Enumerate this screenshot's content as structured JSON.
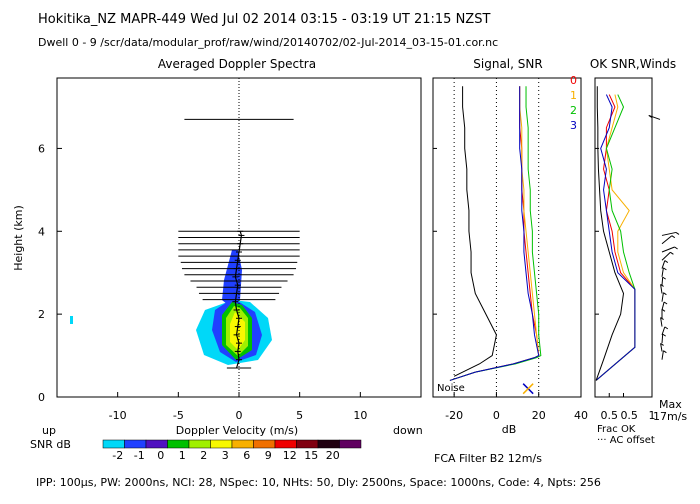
{
  "header": {
    "line1": "Hokitika_NZ  MAPR-449  Wed Jul 02 2014 03:15 - 03:19 UT 21:15 NZST",
    "line2": "Dwell  0 - 9  /scr/data/modular_prof/raw/wind/20140702/02-Jul-2014_03-15-01.cor.nc"
  },
  "footer": {
    "params": "IPP: 100µs,  PW: 2000ns,  NCI: 28,  NSpec: 10,  NHts: 50,  Dly: 2500ns,  Space: 1000ns,  Code: 4,  Npts: 256",
    "fca": "FCA Filter B2 12m/s"
  },
  "colors": {
    "snr_scale": [
      "#00d8f8",
      "#2040ff",
      "#5010c0",
      "#00c000",
      "#a0f000",
      "#f8f800",
      "#f8b000",
      "#f07000",
      "#f00000",
      "#800010",
      "#200010",
      "#600060"
    ],
    "snr_legend_labels": [
      "-2",
      "-1",
      "0",
      "1",
      "2",
      "3",
      "6",
      "9",
      "12",
      "15",
      "20"
    ]
  },
  "chart_data": [
    {
      "type": "heatmap",
      "title": "Averaged Doppler Spectra",
      "xlabel": "Doppler Velocity (m/s)",
      "ylabel": "Height (km)",
      "xlim": [
        -15,
        15
      ],
      "ylim": [
        0,
        7.7
      ],
      "xticks": [
        -10,
        -5,
        0,
        5,
        10
      ],
      "yticks": [
        0,
        2,
        4,
        6
      ],
      "x_side_labels": {
        "left": "up",
        "right": "down"
      },
      "color_legend_label": "SNR dB",
      "mean_velocity_profile": {
        "heights": [
          0.7,
          0.9,
          1.1,
          1.3,
          1.5,
          1.7,
          1.9,
          2.1,
          2.3,
          2.5,
          2.7,
          2.9,
          3.1,
          3.3,
          3.5,
          3.7,
          3.9,
          4.0
        ],
        "velocity": [
          -0.2,
          0.0,
          -0.1,
          0.0,
          -0.2,
          -0.1,
          0.0,
          -0.2,
          -0.3,
          -0.2,
          -0.1,
          -0.3,
          -0.2,
          -0.1,
          0.0,
          0.1,
          0.2,
          0.1
        ]
      },
      "spectral_width_bars": {
        "heights": [
          0.7,
          2.35,
          2.5,
          2.65,
          2.8,
          2.95,
          3.1,
          3.25,
          3.4,
          3.55,
          3.7,
          3.85,
          4.0,
          6.7
        ],
        "half_width": [
          1.0,
          3.0,
          3.3,
          3.5,
          4.0,
          4.5,
          4.7,
          4.8,
          5.0,
          5.0,
          5.0,
          5.0,
          5.0,
          4.5
        ]
      }
    },
    {
      "type": "line",
      "title": "Signal, SNR",
      "xlabel": "dB",
      "xlim": [
        -30,
        40
      ],
      "ylim": [
        0,
        7.7
      ],
      "xticks": [
        -20,
        0,
        20,
        40
      ],
      "annotation": "Noise",
      "series": [
        {
          "name": "0",
          "color": "#f00000",
          "heights": [
            0.4,
            0.6,
            0.8,
            0.95,
            1.0,
            1.5,
            2.0,
            2.5,
            3.0,
            3.5,
            4.0,
            4.5,
            5.0,
            5.5,
            6.0,
            6.5,
            7.0,
            7.5
          ],
          "values": [
            -22,
            -10,
            8,
            18,
            20,
            19,
            17,
            16,
            15,
            14,
            13,
            13,
            12,
            12,
            12,
            11,
            11,
            11
          ]
        },
        {
          "name": "1",
          "color": "#f8b000",
          "heights": [
            0.4,
            0.6,
            0.8,
            0.95,
            1.0,
            1.5,
            2.0,
            2.5,
            3.0,
            3.5,
            4.0,
            4.5,
            5.0,
            5.5,
            6.0,
            6.5,
            7.0,
            7.5
          ],
          "values": [
            -22,
            -10,
            8,
            18,
            20,
            19,
            18,
            17,
            16,
            15,
            14,
            13,
            13,
            12,
            12,
            12,
            11,
            11
          ]
        },
        {
          "name": "2",
          "color": "#00c000",
          "heights": [
            0.4,
            0.6,
            0.8,
            0.95,
            1.0,
            1.5,
            2.0,
            2.5,
            3.0,
            3.5,
            4.0,
            4.5,
            5.0,
            5.5,
            6.0,
            6.5,
            7.0,
            7.5
          ],
          "values": [
            -22,
            -10,
            9,
            19,
            21,
            20,
            20,
            19,
            18,
            17,
            17,
            16,
            16,
            15,
            15,
            15,
            14,
            14
          ]
        },
        {
          "name": "3",
          "color": "#0000c0",
          "heights": [
            0.4,
            0.6,
            0.8,
            0.95,
            1.0,
            1.5,
            2.0,
            2.5,
            3.0,
            3.5,
            4.0,
            4.5,
            5.0,
            5.5,
            6.0,
            6.5,
            7.0,
            7.5
          ],
          "values": [
            -22,
            -10,
            8,
            18,
            20,
            18,
            17,
            15,
            14,
            13,
            13,
            12,
            12,
            12,
            11,
            11,
            11,
            11
          ]
        },
        {
          "name": "",
          "color": "#000000",
          "heights": [
            0.5,
            0.8,
            1.0,
            1.5,
            2.0,
            2.5,
            3.0,
            3.5,
            4.0,
            4.5,
            5.0,
            5.5,
            6.0,
            6.5,
            7.0,
            7.5
          ],
          "values": [
            -20,
            -8,
            -2,
            0,
            -5,
            -10,
            -12,
            -12,
            -13,
            -13,
            -14,
            -14,
            -15,
            -15,
            -16,
            -16
          ]
        }
      ],
      "markers": [
        {
          "x": 15,
          "y": 0.2,
          "colors": [
            "#0000c0",
            "#f8b000"
          ]
        }
      ]
    },
    {
      "type": "line",
      "title": "OK SNR,Winds",
      "xlabel": "Frac OK",
      "sublabel": "AC offset",
      "xlim": [
        0,
        1
      ],
      "ylim": [
        0,
        7.7
      ],
      "xticks": [
        0.5,
        1
      ],
      "tick_labels": [
        "0.5",
        "0.5",
        "1"
      ],
      "max_label": "Max",
      "max_value": "17m/s",
      "series": [
        {
          "name": "0",
          "color": "#f00000",
          "heights": [
            0.4,
            1.2,
            2.0,
            2.6,
            3.0,
            3.5,
            4.0,
            4.5,
            5.0,
            5.5,
            6.0,
            6.5,
            7.0,
            7.3
          ],
          "values": [
            0.02,
            0.7,
            0.7,
            0.7,
            0.45,
            0.35,
            0.3,
            0.2,
            0.25,
            0.15,
            0.2,
            0.2,
            0.35,
            0.25
          ]
        },
        {
          "name": "1",
          "color": "#f8b000",
          "heights": [
            0.4,
            1.2,
            2.0,
            2.6,
            3.0,
            3.5,
            4.0,
            4.5,
            5.0,
            5.5,
            6.0,
            6.5,
            7.0,
            7.3
          ],
          "values": [
            0.02,
            0.7,
            0.7,
            0.7,
            0.5,
            0.4,
            0.4,
            0.6,
            0.3,
            0.25,
            0.2,
            0.3,
            0.4,
            0.35
          ]
        },
        {
          "name": "2",
          "color": "#00c000",
          "heights": [
            0.4,
            1.2,
            2.0,
            2.6,
            3.0,
            3.5,
            4.0,
            4.5,
            5.0,
            5.5,
            6.0,
            6.5,
            7.0,
            7.3
          ],
          "values": [
            0.02,
            0.7,
            0.7,
            0.7,
            0.6,
            0.5,
            0.45,
            0.3,
            0.25,
            0.3,
            0.2,
            0.35,
            0.5,
            0.4
          ]
        },
        {
          "name": "3",
          "color": "#0000c0",
          "heights": [
            0.4,
            1.2,
            2.0,
            2.6,
            3.0,
            3.5,
            4.0,
            4.5,
            5.0,
            5.5,
            6.0,
            6.5,
            7.0,
            7.3
          ],
          "values": [
            0.02,
            0.7,
            0.7,
            0.7,
            0.4,
            0.3,
            0.25,
            0.2,
            0.15,
            0.2,
            0.1,
            0.25,
            0.3,
            0.2
          ]
        },
        {
          "name": "",
          "color": "#000000",
          "heights": [
            0.4,
            0.9,
            1.5,
            2.0,
            2.5,
            3.0,
            3.5,
            4.0,
            4.5,
            5.0,
            5.5,
            6.0,
            6.5,
            7.0,
            7.5
          ],
          "values": [
            0.02,
            0.15,
            0.3,
            0.45,
            0.5,
            0.35,
            0.25,
            0.15,
            0.1,
            0.08,
            0.06,
            0.05,
            0.05,
            0.04,
            0.04
          ]
        }
      ],
      "wind_barbs": {
        "heights": [
          0.9,
          1.1,
          1.3,
          1.5,
          1.7,
          1.9,
          2.1,
          2.3,
          2.5,
          2.7,
          2.9,
          3.1,
          3.3,
          3.5,
          3.7,
          3.9,
          6.7
        ],
        "u": [
          0.1,
          -0.1,
          0.05,
          0.2,
          -0.1,
          0.0,
          0.15,
          0.1,
          -0.1,
          0.05,
          0.1,
          0.2,
          0.6,
          0.9,
          0.7,
          1.0,
          -0.8
        ],
        "v": [
          0.9,
          0.8,
          0.9,
          0.8,
          0.9,
          0.9,
          0.8,
          0.9,
          0.9,
          0.8,
          0.9,
          0.8,
          0.8,
          0.5,
          0.8,
          0.3,
          0.4
        ]
      }
    }
  ]
}
